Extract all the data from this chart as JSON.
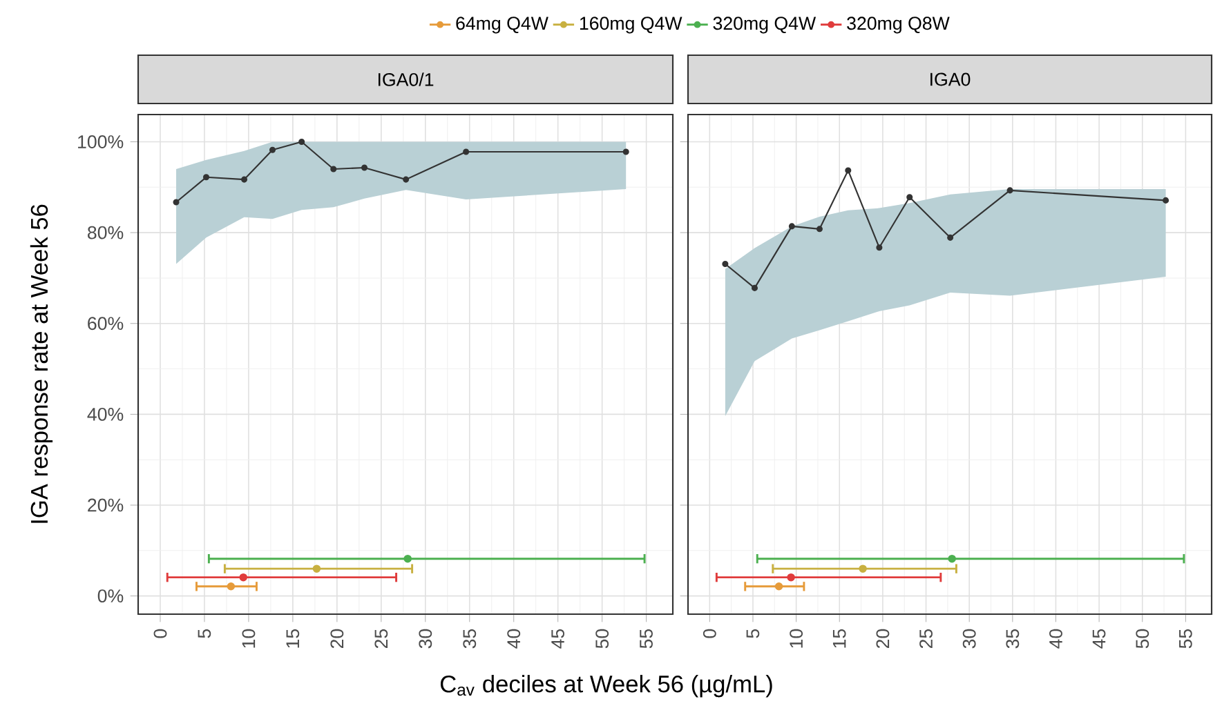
{
  "chart_data": [
    {
      "type": "line",
      "title": "IGA0/1",
      "xlabel": "C$_{av}$ deciles at Week 56 (µg/mL)",
      "ylabel": "IGA response rate at Week 56",
      "xlim": [
        -2.5,
        58
      ],
      "ylim": [
        -4,
        106
      ],
      "xticks": [
        0,
        5,
        10,
        15,
        20,
        25,
        30,
        35,
        40,
        45,
        50,
        55
      ],
      "yticks": [
        {
          "value": 0,
          "label": "0%"
        },
        {
          "value": 20,
          "label": "20%"
        },
        {
          "value": 40,
          "label": "40%"
        },
        {
          "value": 60,
          "label": "60%"
        },
        {
          "value": 80,
          "label": "80%"
        },
        {
          "value": 100,
          "label": "100%"
        }
      ],
      "grid": true,
      "legend": "top",
      "marker": "circle",
      "series": [
        {
          "color": "#333333",
          "x": [
            1.8,
            5.2,
            9.5,
            12.7,
            16.0,
            19.6,
            23.1,
            27.8,
            34.6,
            52.7
          ],
          "values": [
            86.7,
            92.2,
            91.7,
            98.2,
            100,
            94.0,
            94.3,
            91.7,
            97.8,
            97.8
          ],
          "lower": [
            73.1,
            78.9,
            83.4,
            83.0,
            85.0,
            85.6,
            87.5,
            89.4,
            87.3,
            89.6
          ],
          "upper": [
            94.0,
            96.0,
            98.0,
            100,
            100,
            100,
            100,
            100,
            100,
            100
          ]
        },
        {
          "type": "scatter",
          "name": "64mg Q4W",
          "color": "#e69b3a",
          "x": [
            8.0
          ],
          "values": [
            2.1
          ],
          "xerrors": [
            [
              4.1,
              10.9
            ]
          ]
        },
        {
          "type": "scatter",
          "name": "160mg Q4W",
          "color": "#c8b040",
          "x": [
            17.7
          ],
          "values": [
            6.0
          ],
          "xerrors": [
            [
              7.3,
              28.5
            ]
          ]
        },
        {
          "type": "scatter",
          "name": "320mg Q4W",
          "color": "#4cb050",
          "x": [
            28.0
          ],
          "values": [
            8.2
          ],
          "xerrors": [
            [
              5.5,
              54.8
            ]
          ]
        },
        {
          "type": "scatter",
          "name": "320mg Q8W",
          "color": "#e03c3c",
          "x": [
            9.4
          ],
          "values": [
            4.1
          ],
          "xerrors": [
            [
              0.8,
              26.7
            ]
          ]
        }
      ]
    },
    {
      "type": "line",
      "title": "IGA0",
      "xlim": [
        -2.5,
        58
      ],
      "ylim": [
        -4,
        106
      ],
      "xticks": [
        0,
        5,
        10,
        15,
        20,
        25,
        30,
        35,
        40,
        45,
        50,
        55
      ],
      "yticks": [
        {
          "value": 0,
          "label": null
        },
        {
          "value": 20,
          "label": null
        },
        {
          "value": 40,
          "label": null
        },
        {
          "value": 60,
          "label": null
        },
        {
          "value": 80,
          "label": null
        },
        {
          "value": 100,
          "label": null
        }
      ],
      "grid": true,
      "tick_labels": "x",
      "marker": "circle",
      "series": [
        {
          "color": "#333333",
          "x": [
            1.8,
            5.2,
            9.5,
            12.7,
            16.0,
            19.6,
            23.1,
            27.8,
            34.7,
            52.7
          ],
          "values": [
            73.1,
            67.8,
            81.4,
            80.8,
            93.7,
            76.7,
            87.8,
            78.9,
            89.3,
            87.1
          ],
          "lower": [
            39.6,
            51.7,
            56.7,
            58.5,
            60.5,
            62.7,
            64.0,
            66.8,
            66.1,
            70.3
          ],
          "upper": [
            72.0,
            76.6,
            81.4,
            83.5,
            84.9,
            85.4,
            86.5,
            88.4,
            89.6,
            89.6
          ]
        },
        {
          "type": "scatter",
          "color": "#e69b3a",
          "x": [
            8.0
          ],
          "values": [
            2.1
          ],
          "xerrors": [
            [
              4.1,
              10.9
            ]
          ]
        },
        {
          "type": "scatter",
          "color": "#c8b040",
          "x": [
            17.7
          ],
          "values": [
            6.0
          ],
          "xerrors": [
            [
              7.3,
              28.5
            ]
          ]
        },
        {
          "type": "scatter",
          "color": "#4cb050",
          "x": [
            28.0
          ],
          "values": [
            8.2
          ],
          "xerrors": [
            [
              5.5,
              54.8
            ]
          ]
        },
        {
          "type": "scatter",
          "color": "#e03c3c",
          "x": [
            9.4
          ],
          "values": [
            4.1
          ],
          "xerrors": [
            [
              0.8,
              26.7
            ]
          ]
        }
      ]
    }
  ]
}
